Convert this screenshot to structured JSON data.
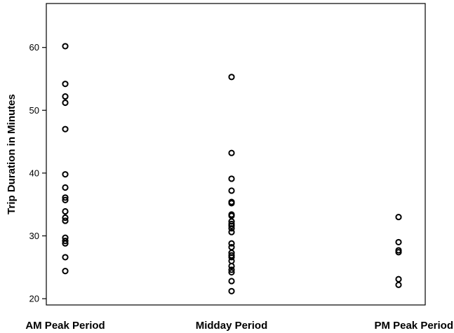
{
  "chart_data": {
    "type": "scatter",
    "title": "",
    "xlabel": "",
    "ylabel": "Trip Duration in Minutes",
    "ylim": [
      19,
      67
    ],
    "yticks": [
      20,
      30,
      40,
      50,
      60
    ],
    "grid": false,
    "categories": [
      "AM Peak Period",
      "Midday Period",
      "PM Peak Period"
    ],
    "series": [
      {
        "category": "AM Peak Period",
        "values": [
          60.2,
          54.2,
          52.2,
          51.2,
          47.0,
          39.8,
          37.7,
          36.1,
          35.7,
          33.9,
          32.9,
          32.4,
          29.7,
          29.2,
          28.8,
          26.6,
          24.4
        ]
      },
      {
        "category": "Midday Period",
        "values": [
          55.3,
          43.2,
          39.1,
          37.2,
          35.4,
          35.2,
          33.4,
          33.2,
          32.3,
          31.9,
          31.6,
          31.2,
          30.6,
          28.8,
          28.2,
          27.3,
          26.9,
          26.6,
          26.0,
          25.2,
          24.6,
          24.2,
          22.8,
          21.2
        ]
      },
      {
        "category": "PM Peak Period",
        "values": [
          33.0,
          29.0,
          27.7,
          27.4,
          23.1,
          22.2
        ]
      }
    ]
  }
}
